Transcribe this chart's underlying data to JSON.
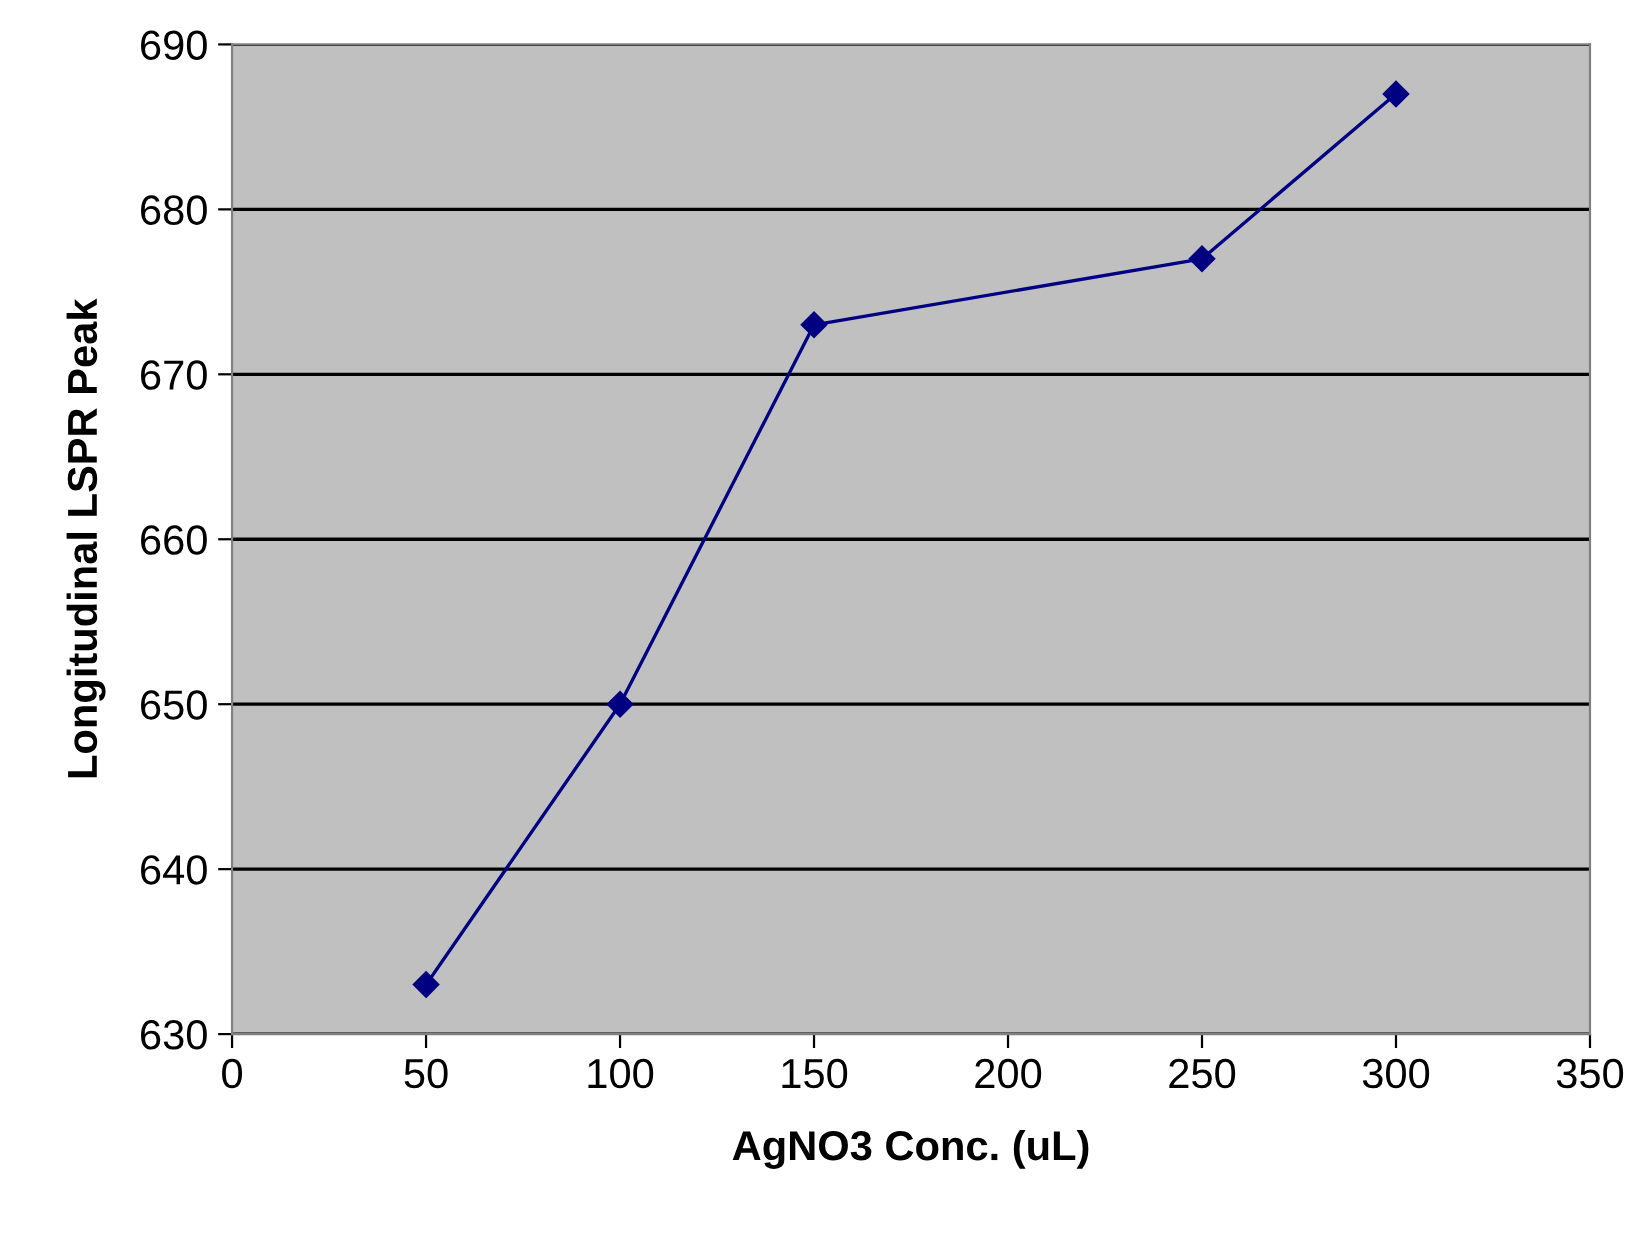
{
  "chart_data": {
    "type": "line",
    "xlabel": "AgNO3 Conc. (uL)",
    "ylabel": "Longitudinal LSPR Peak",
    "x": [
      50,
      100,
      150,
      250,
      300
    ],
    "series": [
      {
        "color": "#000080",
        "values": [
          633,
          650,
          673,
          677,
          687
        ]
      }
    ],
    "xlim": [
      0,
      350
    ],
    "xticks": [
      0,
      50,
      100,
      150,
      200,
      250,
      300,
      350
    ],
    "ylim": [
      630,
      690
    ],
    "yticks": [
      630,
      640,
      650,
      660,
      670,
      680,
      690
    ],
    "grid": "y",
    "marker": "diamond",
    "line_style": "solid"
  }
}
